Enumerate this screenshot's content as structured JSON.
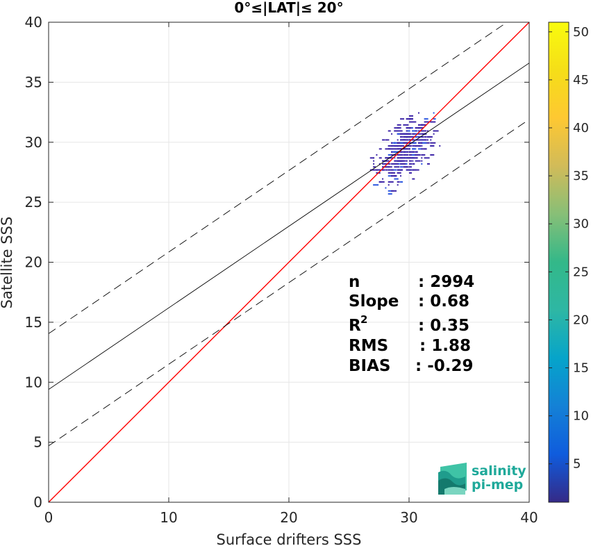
{
  "chart_data": {
    "type": "scatter",
    "title": "0°≤|LAT|≤ 20°",
    "xlabel": "Surface drifters SSS",
    "ylabel": "Satellite SSS",
    "xlim": [
      0,
      40
    ],
    "ylim": [
      0,
      40
    ],
    "x_ticks": [
      "0",
      "10",
      "20",
      "30",
      "40"
    ],
    "y_ticks": [
      "0",
      "5",
      "10",
      "15",
      "20",
      "25",
      "30",
      "35",
      "40"
    ],
    "grid": true,
    "colorbar": {
      "range": [
        1,
        51
      ],
      "ticks": [
        "5",
        "10",
        "15",
        "20",
        "25",
        "30",
        "35",
        "40",
        "45",
        "50"
      ],
      "colormap": "parula"
    },
    "lines": [
      {
        "kind": "identity",
        "color": "#ff0000",
        "style": "solid",
        "intercept": 0,
        "slope": 1
      },
      {
        "kind": "fit",
        "color": "#000000",
        "style": "solid",
        "intercept": 9.4,
        "slope": 0.68
      },
      {
        "kind": "fit-upper",
        "color": "#000000",
        "style": "dashed",
        "intercept": 14.05,
        "slope": 0.68
      },
      {
        "kind": "fit-lower",
        "color": "#000000",
        "style": "dashed",
        "intercept": 4.7,
        "slope": 0.68
      }
    ],
    "cluster": {
      "x_range": [
        22.8,
        33.0
      ],
      "y_range": [
        21.8,
        33.3
      ],
      "color": "#3e26a8"
    },
    "stats": {
      "n_label": "n",
      "n_value": ": 2994",
      "slope_label": "Slope",
      "slope_value": ": 0.68",
      "r2_label": "R",
      "r2_sup": "2",
      "r2_value": ": 0.35",
      "rms_label": "RMS",
      "rms_value": ": 1.88",
      "bias_label": "BIAS",
      "bias_value": ": -0.29"
    }
  },
  "logo": {
    "line1": "salinity",
    "line2": "pi-mep"
  },
  "colors": {
    "identity": "#ff0000",
    "fit": "#000000",
    "points": "#3e26a8",
    "logo": "#1fa99a"
  }
}
